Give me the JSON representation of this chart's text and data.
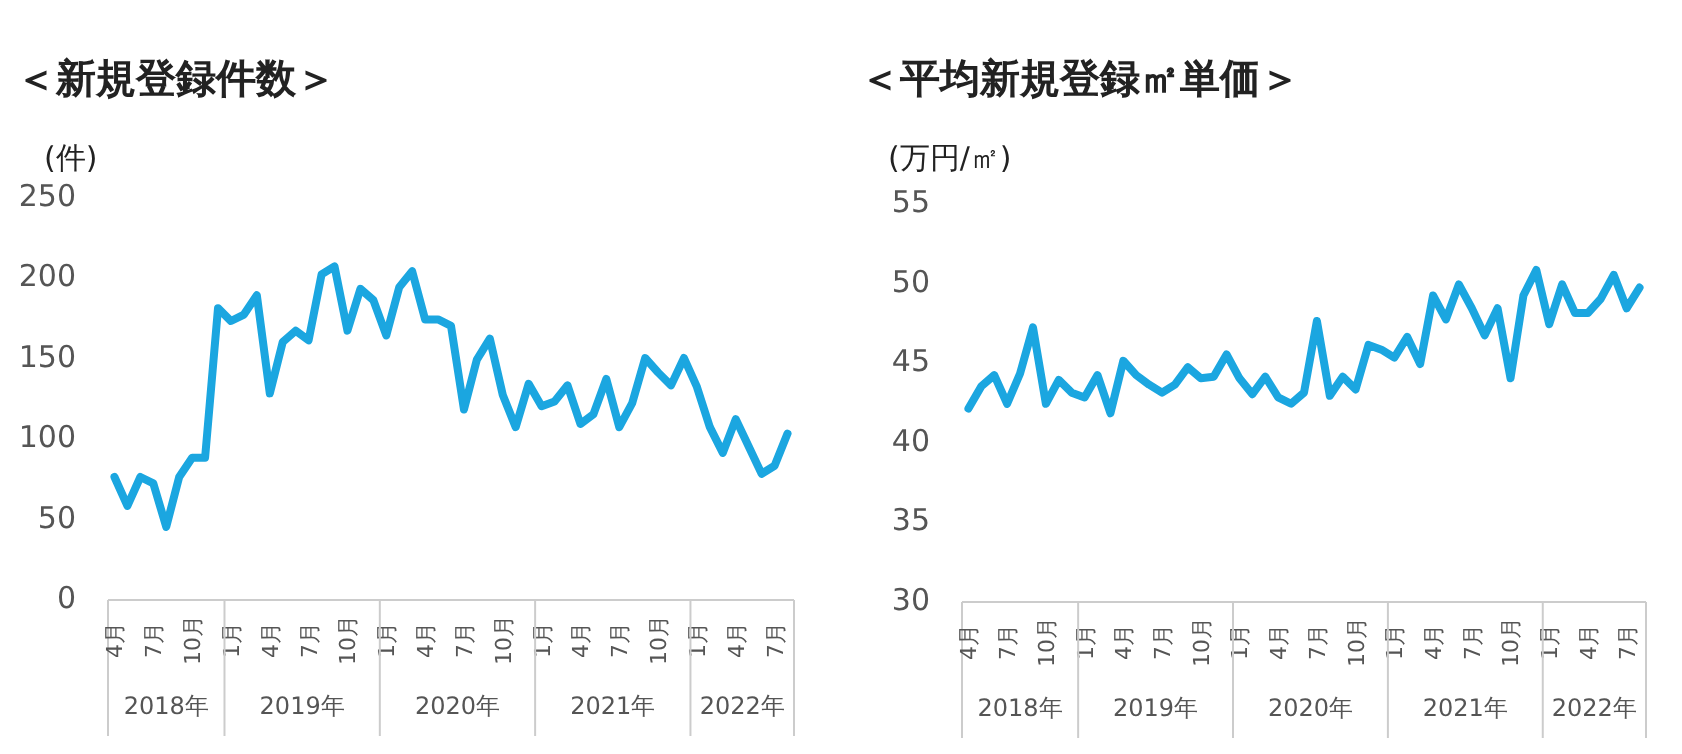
{
  "chart_data": [
    {
      "type": "line",
      "title": "＜新規登録件数＞",
      "ylabel": "(件)",
      "x": [
        "2018-04",
        "2018-05",
        "2018-06",
        "2018-07",
        "2018-08",
        "2018-09",
        "2018-10",
        "2018-11",
        "2018-12",
        "2019-01",
        "2019-02",
        "2019-03",
        "2019-04",
        "2019-05",
        "2019-06",
        "2019-07",
        "2019-08",
        "2019-09",
        "2019-10",
        "2019-11",
        "2019-12",
        "2020-01",
        "2020-02",
        "2020-03",
        "2020-04",
        "2020-05",
        "2020-06",
        "2020-07",
        "2020-08",
        "2020-09",
        "2020-10",
        "2020-11",
        "2020-12",
        "2021-01",
        "2021-02",
        "2021-03",
        "2021-04",
        "2021-05",
        "2021-06",
        "2021-07",
        "2021-08",
        "2021-09",
        "2021-10",
        "2021-11",
        "2021-12",
        "2022-01",
        "2022-02",
        "2022-03",
        "2022-04",
        "2022-05",
        "2022-06",
        "2022-07",
        "2022-08"
      ],
      "series": [
        {
          "color": "#1ba6e0",
          "values": [
            74,
            56,
            74,
            70,
            43,
            74,
            86,
            86,
            179,
            171,
            175,
            187,
            126,
            158,
            165,
            159,
            200,
            205,
            165,
            191,
            184,
            162,
            192,
            202,
            172,
            172,
            168,
            116,
            147,
            160,
            125,
            105,
            132,
            118,
            121,
            131,
            107,
            113,
            135,
            105,
            120,
            148,
            139,
            131,
            148,
            130,
            105,
            89,
            110,
            93,
            76,
            81,
            101
          ]
        }
      ],
      "ylim": [
        0,
        250
      ],
      "yticks": [
        0,
        50,
        100,
        150,
        200,
        250
      ],
      "xlim": [
        "2018-03-16",
        "2022-08-16"
      ],
      "xticks": [
        {
          "value": "2018-04",
          "label": "4月"
        },
        {
          "value": "2018-07",
          "label": "7月"
        },
        {
          "value": "2018-10",
          "label": "10月"
        },
        {
          "value": "2019-01",
          "label": "1月"
        },
        {
          "value": "2019-04",
          "label": "4月"
        },
        {
          "value": "2019-07",
          "label": "7月"
        },
        {
          "value": "2019-10",
          "label": "10月"
        },
        {
          "value": "2020-01",
          "label": "1月"
        },
        {
          "value": "2020-04",
          "label": "4月"
        },
        {
          "value": "2020-07",
          "label": "7月"
        },
        {
          "value": "2020-10",
          "label": "10月"
        },
        {
          "value": "2021-01",
          "label": "1月"
        },
        {
          "value": "2021-04",
          "label": "4月"
        },
        {
          "value": "2021-07",
          "label": "7月"
        },
        {
          "value": "2021-10",
          "label": "10月"
        },
        {
          "value": "2022-01",
          "label": "1月"
        },
        {
          "value": "2022-04",
          "label": "4月"
        },
        {
          "value": "2022-07",
          "label": "7月"
        }
      ],
      "annotations": [
        "2018年",
        "2019年",
        "2020年",
        "2021年",
        "2022年"
      ],
      "grid": false,
      "marker": "none",
      "line_style": "solid"
    },
    {
      "type": "line",
      "title": "＜平均新規登録㎡単価＞",
      "ylabel": "(万円/㎡)",
      "x": [
        "2018-04",
        "2018-05",
        "2018-06",
        "2018-07",
        "2018-08",
        "2018-09",
        "2018-10",
        "2018-11",
        "2018-12",
        "2019-01",
        "2019-02",
        "2019-03",
        "2019-04",
        "2019-05",
        "2019-06",
        "2019-07",
        "2019-08",
        "2019-09",
        "2019-10",
        "2019-11",
        "2019-12",
        "2020-01",
        "2020-02",
        "2020-03",
        "2020-04",
        "2020-05",
        "2020-06",
        "2020-07",
        "2020-08",
        "2020-09",
        "2020-10",
        "2020-11",
        "2020-12",
        "2021-01",
        "2021-02",
        "2021-03",
        "2021-04",
        "2021-05",
        "2021-06",
        "2021-07",
        "2021-08",
        "2021-09",
        "2021-10",
        "2021-11",
        "2021-12",
        "2022-01",
        "2022-02",
        "2022-03",
        "2022-04",
        "2022-05",
        "2022-06",
        "2022-07",
        "2022-08"
      ],
      "series": [
        {
          "color": "#1ba6e0",
          "values": [
            41.9,
            43.3,
            44.0,
            42.2,
            44.1,
            47.0,
            42.2,
            43.7,
            42.9,
            42.6,
            44.0,
            41.6,
            44.9,
            44.0,
            43.4,
            42.9,
            43.4,
            44.5,
            43.8,
            43.9,
            45.3,
            43.8,
            42.8,
            43.9,
            42.6,
            42.2,
            42.9,
            47.4,
            42.7,
            43.9,
            43.1,
            45.9,
            45.6,
            45.1,
            46.4,
            44.7,
            49.0,
            47.5,
            49.7,
            48.2,
            46.5,
            48.2,
            43.8,
            49.0,
            50.6,
            47.2,
            49.7,
            47.9,
            47.9,
            48.8,
            50.3,
            48.2,
            49.5
          ]
        }
      ],
      "ylim": [
        30,
        55
      ],
      "yticks": [
        30,
        35,
        40,
        45,
        50,
        55
      ],
      "xlim": [
        "2018-03-16",
        "2022-08-16"
      ],
      "xticks": [
        {
          "value": "2018-04",
          "label": "4月"
        },
        {
          "value": "2018-07",
          "label": "7月"
        },
        {
          "value": "2018-10",
          "label": "10月"
        },
        {
          "value": "2019-01",
          "label": "1月"
        },
        {
          "value": "2019-04",
          "label": "4月"
        },
        {
          "value": "2019-07",
          "label": "7月"
        },
        {
          "value": "2019-10",
          "label": "10月"
        },
        {
          "value": "2020-01",
          "label": "1月"
        },
        {
          "value": "2020-04",
          "label": "4月"
        },
        {
          "value": "2020-07",
          "label": "7月"
        },
        {
          "value": "2020-10",
          "label": "10月"
        },
        {
          "value": "2021-01",
          "label": "1月"
        },
        {
          "value": "2021-04",
          "label": "4月"
        },
        {
          "value": "2021-07",
          "label": "7月"
        },
        {
          "value": "2021-10",
          "label": "10月"
        },
        {
          "value": "2022-01",
          "label": "1月"
        },
        {
          "value": "2022-04",
          "label": "4月"
        },
        {
          "value": "2022-07",
          "label": "7月"
        }
      ],
      "annotations": [
        "2018年",
        "2019年",
        "2020年",
        "2021年",
        "2022年"
      ],
      "grid": false,
      "marker": "none",
      "line_style": "solid"
    }
  ]
}
